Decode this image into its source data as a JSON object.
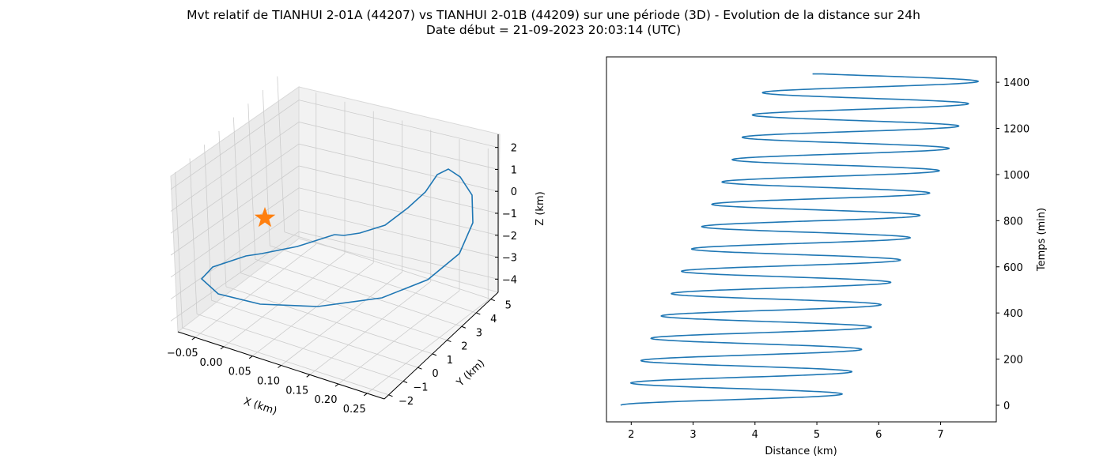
{
  "figure": {
    "title_line1": "Mvt relatif de TIANHUI 2-01A (44207) vs TIANHUI 2-01B (44209) sur une période (3D) - Evolution de la distance sur 24h",
    "title_line2": "Date début = 21-09-2023 20:03:14 (UTC)"
  },
  "colors": {
    "series": "#1f77b4",
    "marker": "#ff7f0e",
    "pane_side": "#ebebeb",
    "pane_back": "#f2f2f2",
    "pane_floor": "#f6f6f6",
    "grid": "#cccccc"
  },
  "chart_data": [
    {
      "type": "line",
      "projection": "3d",
      "xlabel": "X (km)",
      "ylabel": "Y (km)",
      "zlabel": "Z (km)",
      "xlim": [
        -0.08,
        0.28
      ],
      "ylim": [
        -2.3,
        5.5
      ],
      "zlim": [
        -4.6,
        2.6
      ],
      "x_ticks": [
        "−0.05",
        "0.00",
        "0.05",
        "0.10",
        "0.15",
        "0.20",
        "0.25"
      ],
      "y_ticks": [
        "−2",
        "−1",
        "0",
        "1",
        "2",
        "3",
        "4",
        "5"
      ],
      "z_ticks": [
        "2",
        "1",
        "0",
        "−1",
        "−2",
        "−3",
        "−4"
      ],
      "grid": true,
      "trajectory": {
        "x": [
          0.26,
          0.22,
          0.17,
          0.12,
          0.06,
          0.0,
          -0.04,
          -0.06,
          -0.05,
          -0.03,
          0.0,
          0.05,
          0.1,
          0.15,
          0.19,
          0.23,
          0.255,
          0.265,
          0.26,
          0.25,
          0.245,
          0.24,
          0.235
        ],
        "y": [
          1.7,
          2.8,
          3.8,
          4.6,
          5.2,
          5.1,
          4.5,
          3.5,
          2.3,
          1.1,
          -0.1,
          -1.1,
          -1.8,
          -2.2,
          -2.1,
          -1.5,
          -0.6,
          0.4,
          1.2,
          1.9,
          2.2,
          2.4,
          2.5
        ],
        "z": [
          -1.2,
          -1.7,
          -2.2,
          -2.6,
          -3.0,
          -3.2,
          -3.4,
          -3.6,
          -3.5,
          -3.2,
          -2.8,
          -2.3,
          -1.7,
          -1.1,
          -0.5,
          0.1,
          0.7,
          1.1,
          1.4,
          1.5,
          1.3,
          0.9,
          0.6
        ],
        "points_screen": [
          [
            423,
            297
          ],
          [
            376,
            312
          ],
          [
            331,
            321
          ],
          [
            311,
            324
          ],
          [
            269,
            338
          ],
          [
            255,
            353
          ],
          [
            276,
            372
          ],
          [
            329,
            385
          ],
          [
            402,
            388
          ],
          [
            483,
            377
          ],
          [
            541,
            354
          ],
          [
            581,
            321
          ],
          [
            598,
            282
          ],
          [
            597,
            247
          ],
          [
            582,
            224
          ],
          [
            567,
            214
          ],
          [
            553,
            221
          ],
          [
            538,
            243
          ],
          [
            516,
            263
          ],
          [
            487,
            285
          ],
          [
            455,
            295
          ],
          [
            435,
            298
          ],
          [
            423,
            297
          ]
        ]
      },
      "marker": {
        "type": "star",
        "label": ""
      }
    },
    {
      "type": "line",
      "xlabel": "Distance (km)",
      "ylabel": "Temps (min)",
      "xlim": [
        1.6,
        7.9
      ],
      "ylim": [
        -72,
        1510
      ],
      "x_ticks": [
        2,
        3,
        4,
        5,
        6,
        7
      ],
      "y_ticks": [
        0,
        200,
        400,
        600,
        800,
        1000,
        1200,
        1400
      ],
      "yaxis_side": "right",
      "grid": false,
      "series": {
        "period_min": 96.8,
        "center_start": 3.58,
        "center_end": 5.96,
        "amplitude_start": 1.75,
        "amplitude_end": 1.7,
        "t_end": 1436,
        "start_distance": 1.83,
        "end_distance": 4.93
      }
    }
  ]
}
